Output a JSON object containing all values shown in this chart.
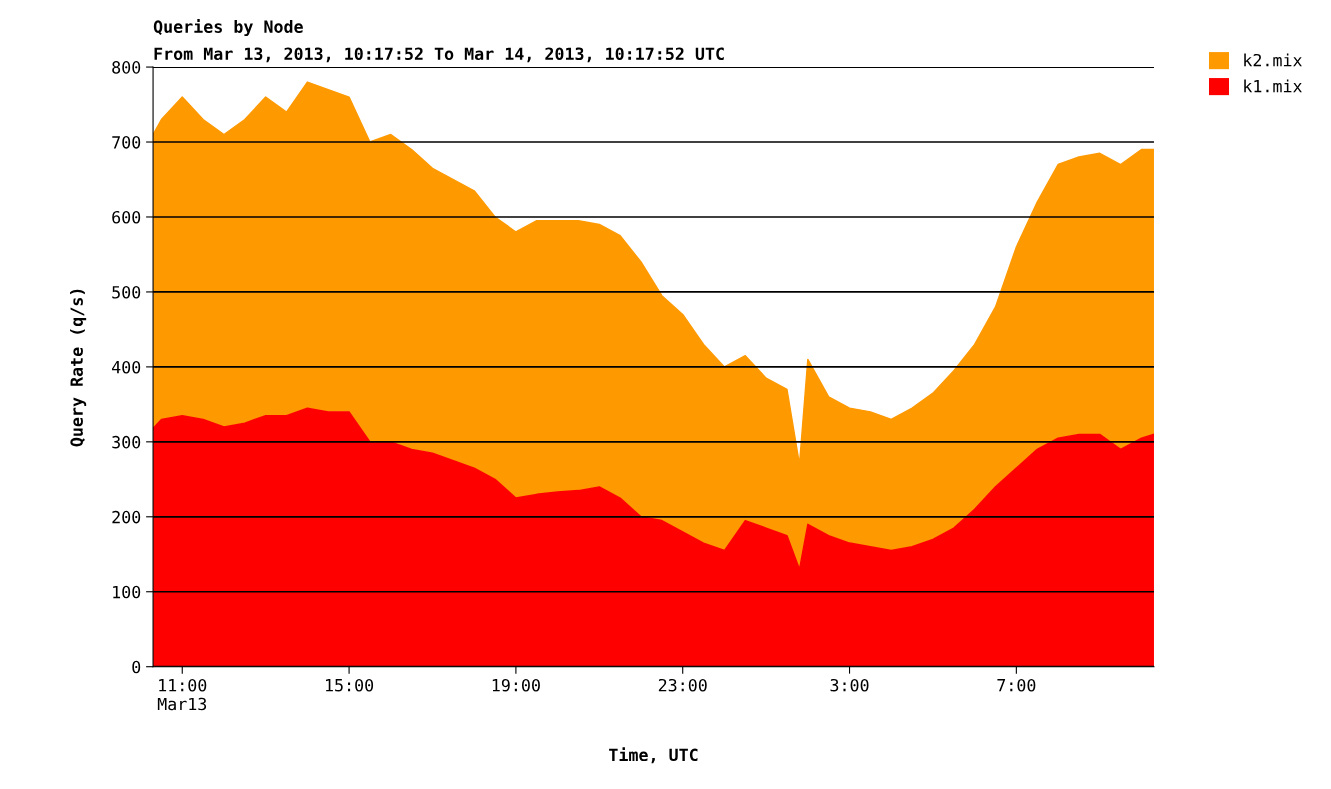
{
  "chart_data": {
    "type": "area",
    "title": "Queries by Node",
    "subtitle": "From Mar 13, 2013, 10:17:52 To Mar 14, 2013, 10:17:52 UTC",
    "xlabel": "Time, UTC",
    "ylabel": "Query Rate (q/s)",
    "stacked": true,
    "grid": "y",
    "legend": "top right",
    "x": [
      "2013-03-13T10:18",
      "2013-03-13T10:30",
      "2013-03-13T11:00",
      "2013-03-13T11:30",
      "2013-03-13T12:00",
      "2013-03-13T12:30",
      "2013-03-13T13:00",
      "2013-03-13T13:30",
      "2013-03-13T14:00",
      "2013-03-13T14:30",
      "2013-03-13T15:00",
      "2013-03-13T15:30",
      "2013-03-13T16:00",
      "2013-03-13T16:30",
      "2013-03-13T17:00",
      "2013-03-13T17:30",
      "2013-03-13T18:00",
      "2013-03-13T18:30",
      "2013-03-13T19:00",
      "2013-03-13T19:30",
      "2013-03-13T20:00",
      "2013-03-13T20:30",
      "2013-03-13T21:00",
      "2013-03-13T21:30",
      "2013-03-13T22:00",
      "2013-03-13T22:30",
      "2013-03-13T23:00",
      "2013-03-13T23:30",
      "2013-03-14T00:00",
      "2013-03-14T00:30",
      "2013-03-14T01:00",
      "2013-03-14T01:30",
      "2013-03-14T01:48",
      "2013-03-14T02:00",
      "2013-03-14T02:30",
      "2013-03-14T03:00",
      "2013-03-14T03:30",
      "2013-03-14T04:00",
      "2013-03-14T04:30",
      "2013-03-14T05:00",
      "2013-03-14T05:30",
      "2013-03-14T06:00",
      "2013-03-14T06:30",
      "2013-03-14T07:00",
      "2013-03-14T07:30",
      "2013-03-14T08:00",
      "2013-03-14T08:30",
      "2013-03-14T09:00",
      "2013-03-14T09:30",
      "2013-03-14T10:00",
      "2013-03-14T10:18"
    ],
    "series": [
      {
        "name": "k1.mix",
        "color": "#ff0000",
        "values": [
          318,
          330,
          335,
          330,
          320,
          325,
          335,
          335,
          345,
          340,
          340,
          300,
          300,
          290,
          285,
          275,
          265,
          250,
          225,
          230,
          233,
          235,
          240,
          225,
          200,
          195,
          180,
          165,
          155,
          195,
          185,
          175,
          130,
          190,
          175,
          165,
          160,
          155,
          160,
          170,
          185,
          210,
          240,
          265,
          290,
          305,
          310,
          310,
          290,
          305,
          310
        ]
      },
      {
        "name": "k2.mix",
        "color": "#ff9900",
        "values": [
          392,
          400,
          425,
          400,
          390,
          405,
          425,
          405,
          435,
          430,
          420,
          400,
          410,
          400,
          380,
          375,
          370,
          350,
          355,
          365,
          362,
          360,
          350,
          350,
          340,
          300,
          290,
          265,
          245,
          220,
          200,
          195,
          140,
          220,
          185,
          180,
          180,
          175,
          185,
          195,
          210,
          220,
          240,
          295,
          330,
          365,
          370,
          375,
          380,
          385,
          380
        ]
      }
    ],
    "xlim": [
      "2013-03-13T10:18",
      "2013-03-14T10:18"
    ],
    "xticks": [
      {
        "value": "2013-03-13T11:00",
        "label": "11:00\nMar13"
      },
      {
        "value": "2013-03-13T15:00",
        "label": "15:00"
      },
      {
        "value": "2013-03-13T19:00",
        "label": "19:00"
      },
      {
        "value": "2013-03-13T23:00",
        "label": "23:00"
      },
      {
        "value": "2013-03-14T03:00",
        "label": "3:00"
      },
      {
        "value": "2013-03-14T07:00",
        "label": "7:00"
      }
    ],
    "ylim": [
      0,
      800
    ],
    "yticks": [
      0,
      100,
      200,
      300,
      400,
      500,
      600,
      700,
      800
    ]
  }
}
